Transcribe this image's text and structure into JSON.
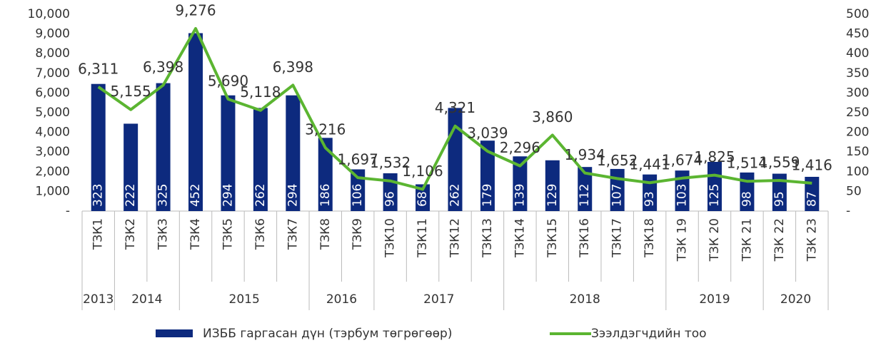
{
  "chart_data": {
    "type": "bar_line",
    "categories": [
      "ТЗК1",
      "ТЗК2",
      "ТЗК3",
      "ТЗК4",
      "ТЗК5",
      "ТЗК6",
      "ТЗК7",
      "ТЗК8",
      "ТЗК9",
      "ТЗК10",
      "ТЗК11",
      "ТЗК12",
      "ТЗК13",
      "ТЗК14",
      "ТЗК15",
      "ТЗК16",
      "ТЗК17",
      "ТЗК18",
      "ТЗК 19",
      "ТЗК 20",
      "ТЗК 21",
      "ТЗК 22",
      "ТЗК 23"
    ],
    "x_groups": [
      {
        "label": "2013",
        "count": 1
      },
      {
        "label": "2014",
        "count": 2
      },
      {
        "label": "2015",
        "count": 4
      },
      {
        "label": "2016",
        "count": 2
      },
      {
        "label": "2017",
        "count": 4
      },
      {
        "label": "2018",
        "count": 5
      },
      {
        "label": "2019",
        "count": 3
      },
      {
        "label": "2020",
        "count": 2
      }
    ],
    "series": [
      {
        "name": "ИЗББ гаргасан дүн (тэрбум төгрөгөөр)",
        "type": "bar",
        "axis": "y2",
        "color": "#0d2a7e",
        "values": [
          323,
          222,
          325,
          452,
          294,
          262,
          294,
          186,
          106,
          96,
          68,
          262,
          179,
          139,
          129,
          112,
          107,
          93,
          103,
          125,
          98,
          95,
          87
        ]
      },
      {
        "name": "Зээлдэгчдийн тоо",
        "type": "line",
        "axis": "y",
        "color": "#5bb531",
        "values": [
          6311,
          5155,
          6398,
          9276,
          5690,
          5118,
          6398,
          3216,
          1697,
          1532,
          1106,
          4321,
          3039,
          2296,
          3860,
          1934,
          1652,
          1441,
          1674,
          1825,
          1514,
          1559,
          1416
        ],
        "value_labels": [
          "6,311",
          "5,155",
          "6,398",
          "9,276",
          "5,690",
          "5,118",
          "6,398",
          "3,216",
          "1,697",
          "1,532",
          "1,106",
          "4,321",
          "3,039",
          "2,296",
          "3,860",
          "1,934",
          "1,652",
          "1,441",
          "1,674",
          "1,825",
          "1,514",
          "1,559",
          "1,416"
        ]
      }
    ],
    "ylim": [
      0,
      10000
    ],
    "yticks": [
      {
        "value": 0,
        "label": "-"
      },
      {
        "value": 1000,
        "label": "1,000"
      },
      {
        "value": 2000,
        "label": "2,000"
      },
      {
        "value": 3000,
        "label": "3,000"
      },
      {
        "value": 4000,
        "label": "4,000"
      },
      {
        "value": 5000,
        "label": "5,000"
      },
      {
        "value": 6000,
        "label": "6,000"
      },
      {
        "value": 7000,
        "label": "7,000"
      },
      {
        "value": 8000,
        "label": "8,000"
      },
      {
        "value": 9000,
        "label": "9,000"
      },
      {
        "value": 10000,
        "label": "10,000"
      }
    ],
    "y2lim": [
      0,
      500
    ],
    "y2ticks": [
      {
        "value": 0,
        "label": "-"
      },
      50,
      100,
      150,
      200,
      250,
      300,
      350,
      400,
      450,
      500
    ],
    "legend": "bottom"
  }
}
